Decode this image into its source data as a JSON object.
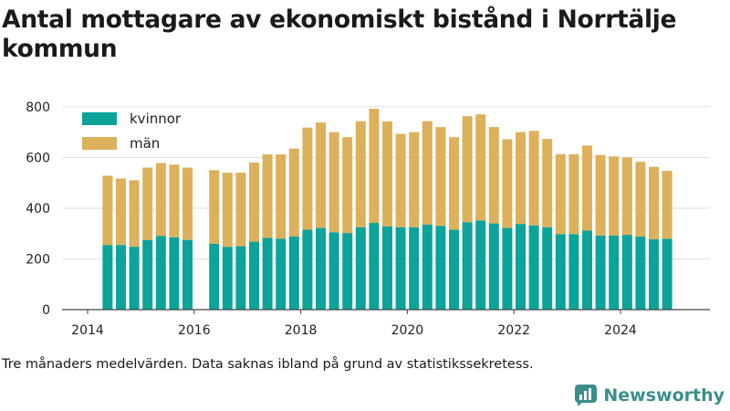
{
  "title": "Antal mottagare av ekonomiskt bistånd i Norrtälje kommun",
  "footnote": "Tre månaders medelvärden. Data saknas ibland på grund av statistikssekretess.",
  "brand": "Newsworthy",
  "colors": {
    "women": "#0ba39a",
    "men": "#ddb05c",
    "grid": "#dddddd",
    "axis": "#444444",
    "brand": "#3b8f8a"
  },
  "chart_data": {
    "type": "bar",
    "stacked": true,
    "x_unit": "quarter",
    "x_ticks": [
      "2014",
      "2016",
      "2018",
      "2020",
      "2022",
      "2024"
    ],
    "y_ticks": [
      "0",
      "200",
      "400",
      "600",
      "800"
    ],
    "ylim": [
      0,
      850
    ],
    "legend_position": "top-left",
    "series": [
      {
        "name": "kvinnor",
        "key": "women"
      },
      {
        "name": "män",
        "key": "men"
      }
    ],
    "points": [
      {
        "x": "2014-Q2",
        "women": 255,
        "men": 273
      },
      {
        "x": "2014-Q3",
        "women": 255,
        "men": 262
      },
      {
        "x": "2014-Q4",
        "women": 248,
        "men": 262
      },
      {
        "x": "2015-Q1",
        "women": 275,
        "men": 285
      },
      {
        "x": "2015-Q2",
        "women": 290,
        "men": 288
      },
      {
        "x": "2015-Q3",
        "women": 285,
        "men": 287
      },
      {
        "x": "2015-Q4",
        "women": 275,
        "men": 285
      },
      {
        "x": "2016-Q1",
        "women": null,
        "men": null
      },
      {
        "x": "2016-Q2",
        "women": 260,
        "men": 290
      },
      {
        "x": "2016-Q3",
        "women": 248,
        "men": 292
      },
      {
        "x": "2016-Q4",
        "women": 250,
        "men": 290
      },
      {
        "x": "2017-Q1",
        "women": 268,
        "men": 312
      },
      {
        "x": "2017-Q2",
        "women": 283,
        "men": 329
      },
      {
        "x": "2017-Q3",
        "women": 280,
        "men": 332
      },
      {
        "x": "2017-Q4",
        "women": 288,
        "men": 347
      },
      {
        "x": "2018-Q1",
        "women": 315,
        "men": 403
      },
      {
        "x": "2018-Q2",
        "women": 322,
        "men": 416
      },
      {
        "x": "2018-Q3",
        "women": 305,
        "men": 395
      },
      {
        "x": "2018-Q4",
        "women": 302,
        "men": 378
      },
      {
        "x": "2019-Q1",
        "women": 325,
        "men": 418
      },
      {
        "x": "2019-Q2",
        "women": 342,
        "men": 450
      },
      {
        "x": "2019-Q3",
        "women": 328,
        "men": 414
      },
      {
        "x": "2019-Q4",
        "women": 325,
        "men": 368
      },
      {
        "x": "2020-Q1",
        "women": 325,
        "men": 375
      },
      {
        "x": "2020-Q2",
        "women": 335,
        "men": 408
      },
      {
        "x": "2020-Q3",
        "women": 330,
        "men": 390
      },
      {
        "x": "2020-Q4",
        "women": 315,
        "men": 365
      },
      {
        "x": "2021-Q1",
        "women": 345,
        "men": 418
      },
      {
        "x": "2021-Q2",
        "women": 352,
        "men": 418
      },
      {
        "x": "2021-Q3",
        "women": 340,
        "men": 380
      },
      {
        "x": "2021-Q4",
        "women": 322,
        "men": 350
      },
      {
        "x": "2022-Q1",
        "women": 338,
        "men": 362
      },
      {
        "x": "2022-Q2",
        "women": 332,
        "men": 373
      },
      {
        "x": "2022-Q3",
        "women": 325,
        "men": 348
      },
      {
        "x": "2022-Q4",
        "women": 298,
        "men": 315
      },
      {
        "x": "2023-Q1",
        "women": 298,
        "men": 315
      },
      {
        "x": "2023-Q2",
        "women": 312,
        "men": 335
      },
      {
        "x": "2023-Q3",
        "women": 292,
        "men": 318
      },
      {
        "x": "2023-Q4",
        "women": 292,
        "men": 312
      },
      {
        "x": "2024-Q1",
        "women": 295,
        "men": 305
      },
      {
        "x": "2024-Q2",
        "women": 288,
        "men": 295
      },
      {
        "x": "2024-Q3",
        "women": 278,
        "men": 285
      },
      {
        "x": "2024-Q4",
        "women": 280,
        "men": 267
      }
    ]
  }
}
